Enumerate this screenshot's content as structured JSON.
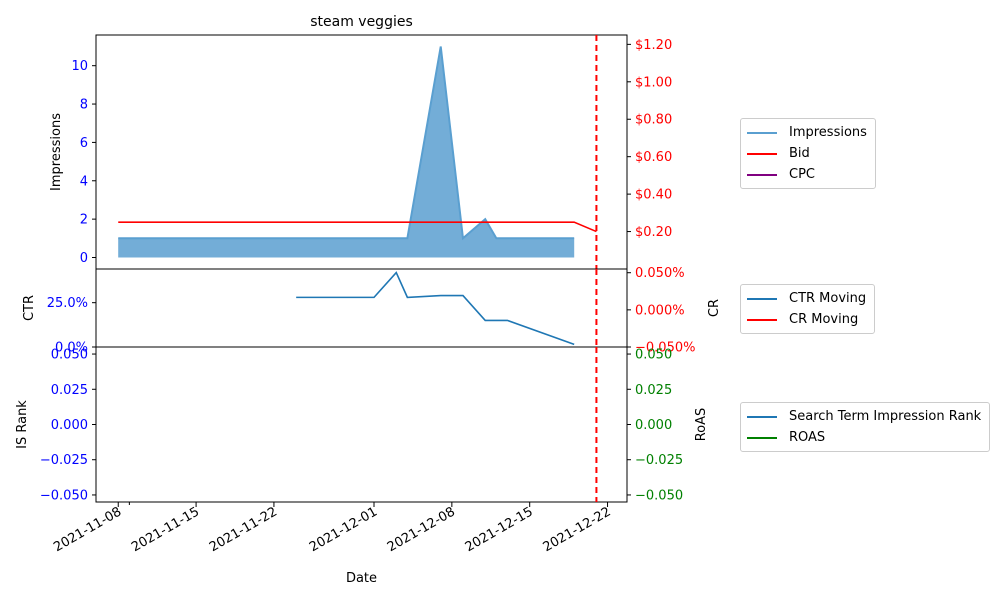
{
  "chart_data": {
    "type": "line",
    "title": "steam veggies",
    "xlabel": "Date",
    "x_ticks": [
      "2021-11-08",
      "2021-11-15",
      "2021-11-22",
      "2021-12-01",
      "2021-12-08",
      "2021-12-15",
      "2021-12-22"
    ],
    "marker_date": "2021-12-21",
    "marker_color": "#ff0000",
    "panels": [
      {
        "name": "impressions-panel",
        "ylabel_left": "Impressions",
        "ylabel_right": "",
        "ylim_left": [
          -0.6,
          11.6
        ],
        "ylim_right": [
          0.0,
          1.25
        ],
        "left_ticks": [
          {
            "v": 0,
            "label": "0"
          },
          {
            "v": 2,
            "label": "2"
          },
          {
            "v": 4,
            "label": "4"
          },
          {
            "v": 6,
            "label": "6"
          },
          {
            "v": 8,
            "label": "8"
          },
          {
            "v": 10,
            "label": "10"
          }
        ],
        "right_ticks": [
          {
            "v": 0.2,
            "label": "$0.20"
          },
          {
            "v": 0.4,
            "label": "$0.40"
          },
          {
            "v": 0.6,
            "label": "$0.60"
          },
          {
            "v": 0.8,
            "label": "$0.80"
          },
          {
            "v": 1.0,
            "label": "$1.00"
          },
          {
            "v": 1.2,
            "label": "$1.20"
          }
        ],
        "left_tick_color": "#0000ff",
        "right_tick_color": "#ff0000",
        "series": [
          {
            "name": "Impressions",
            "axis": "left",
            "style": "area",
            "color": "#5a9fd0",
            "x": [
              "2021-11-08",
              "2021-12-04",
              "2021-12-07",
              "2021-12-09",
              "2021-12-11",
              "2021-12-12",
              "2021-12-19"
            ],
            "y": [
              1,
              1,
              11,
              1,
              2,
              1,
              1
            ]
          },
          {
            "name": "Bid",
            "axis": "right",
            "style": "line",
            "color": "#ff0000",
            "x": [
              "2021-11-08",
              "2021-12-19",
              "2021-12-21"
            ],
            "y": [
              0.25,
              0.25,
              0.2
            ]
          },
          {
            "name": "CPC",
            "axis": "right",
            "style": "line",
            "color": "#800080",
            "x": [],
            "y": []
          }
        ]
      },
      {
        "name": "ctr-panel",
        "ylabel_left": "CTR",
        "ylabel_right": "CR",
        "ylim_left": [
          0,
          0.44
        ],
        "ylim_right": [
          -0.05,
          0.055
        ],
        "left_ticks": [
          {
            "v": 0,
            "label": "0.0%"
          },
          {
            "v": 0.25,
            "label": "25.0%"
          }
        ],
        "right_ticks": [
          {
            "v": -0.05,
            "label": "−0.050%"
          },
          {
            "v": 0.0,
            "label": "0.000%"
          },
          {
            "v": 0.05,
            "label": "0.050%"
          }
        ],
        "left_tick_color": "#0000ff",
        "right_tick_color": "#ff0000",
        "series": [
          {
            "name": "CTR Moving",
            "axis": "left",
            "style": "line",
            "color": "#1f77b4",
            "x": [
              "2021-11-24",
              "2021-12-01",
              "2021-12-03",
              "2021-12-04",
              "2021-12-07",
              "2021-12-09",
              "2021-12-11",
              "2021-12-13",
              "2021-12-19"
            ],
            "y": [
              0.28,
              0.28,
              0.42,
              0.28,
              0.29,
              0.29,
              0.15,
              0.15,
              0.015
            ]
          },
          {
            "name": "CR Moving",
            "axis": "right",
            "style": "line",
            "color": "#ff0000",
            "x": [],
            "y": []
          }
        ]
      },
      {
        "name": "is-rank-panel",
        "ylabel_left": "IS Rank",
        "ylabel_right": "RoAS",
        "ylim_left": [
          -0.055,
          0.055
        ],
        "ylim_right": [
          -0.055,
          0.055
        ],
        "left_ticks": [
          {
            "v": -0.05,
            "label": "−0.050"
          },
          {
            "v": -0.025,
            "label": "−0.025"
          },
          {
            "v": 0,
            "label": "0.000"
          },
          {
            "v": 0.025,
            "label": "0.025"
          },
          {
            "v": 0.05,
            "label": "0.050"
          }
        ],
        "right_ticks": [
          {
            "v": -0.05,
            "label": "−0.050"
          },
          {
            "v": -0.025,
            "label": "−0.025"
          },
          {
            "v": 0,
            "label": "0.000"
          },
          {
            "v": 0.025,
            "label": "0.025"
          },
          {
            "v": 0.05,
            "label": "0.050"
          }
        ],
        "left_tick_color": "#0000ff",
        "right_tick_color": "#008000",
        "series": [
          {
            "name": "Search Term Impression Rank",
            "axis": "left",
            "style": "line",
            "color": "#1f77b4",
            "x": [],
            "y": []
          },
          {
            "name": "ROAS",
            "axis": "right",
            "style": "line",
            "color": "#008000",
            "x": [],
            "y": []
          }
        ]
      }
    ],
    "legends": [
      {
        "panel": "impressions-panel",
        "placement": "outside-right",
        "entries": [
          {
            "label": "Impressions",
            "color": "#5a9fd0"
          },
          {
            "label": "Bid",
            "color": "#ff0000"
          },
          {
            "label": "CPC",
            "color": "#800080"
          }
        ]
      },
      {
        "panel": "ctr-panel",
        "placement": "outside-right",
        "entries": [
          {
            "label": "CTR Moving",
            "color": "#1f77b4"
          },
          {
            "label": "CR Moving",
            "color": "#ff0000"
          }
        ]
      },
      {
        "panel": "is-rank-panel",
        "placement": "outside-right",
        "entries": [
          {
            "label": "Search Term Impression Rank",
            "color": "#1f77b4"
          },
          {
            "label": "ROAS",
            "color": "#008000"
          }
        ]
      }
    ]
  }
}
